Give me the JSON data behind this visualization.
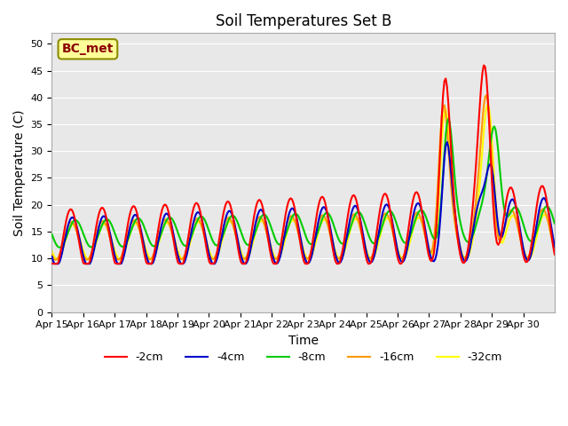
{
  "title": "Soil Temperatures Set B",
  "xlabel": "Time",
  "ylabel": "Soil Temperature (C)",
  "ylim": [
    0,
    52
  ],
  "yticks": [
    0,
    5,
    10,
    15,
    20,
    25,
    30,
    35,
    40,
    45,
    50
  ],
  "x_labels": [
    "Apr 15",
    "Apr 16",
    "Apr 17",
    "Apr 18",
    "Apr 19",
    "Apr 20",
    "Apr 21",
    "Apr 22",
    "Apr 23",
    "Apr 24",
    "Apr 25",
    "Apr 26",
    "Apr 27",
    "Apr 28",
    "Apr 29",
    "Apr 30"
  ],
  "colors": {
    "-2cm": "#ff0000",
    "-4cm": "#0000cc",
    "-8cm": "#00cc00",
    "-16cm": "#ff9900",
    "-32cm": "#ffff00"
  },
  "legend_label": "BC_met",
  "bg_color": "#e8e8e8",
  "line_width": 1.5,
  "annotation_box_color": "#ffff99",
  "annotation_box_edge": "#8b8b00"
}
